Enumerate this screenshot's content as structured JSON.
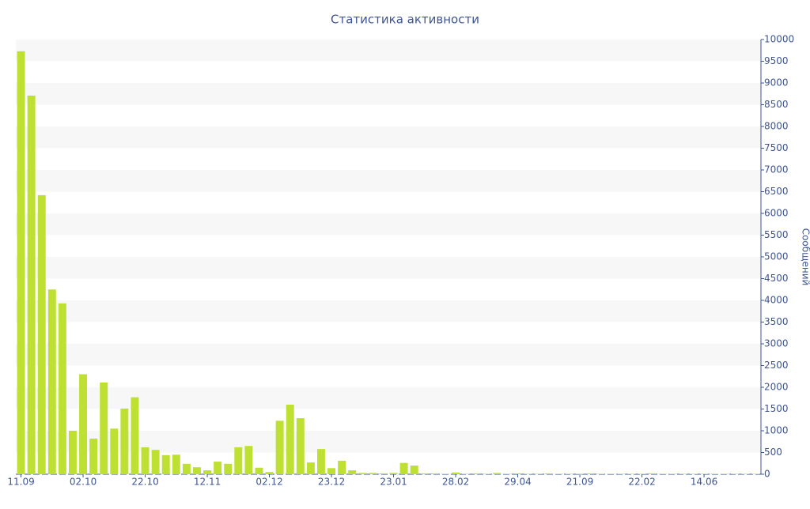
{
  "chart_data": {
    "type": "bar",
    "title": "Статистика активности",
    "y_label": "Сообщений",
    "categories": [
      "11.09",
      null,
      null,
      null,
      null,
      null,
      "02.10",
      null,
      null,
      null,
      null,
      null,
      "22.10",
      null,
      null,
      null,
      null,
      null,
      "12.11",
      null,
      null,
      null,
      null,
      null,
      "02.12",
      null,
      null,
      null,
      null,
      null,
      "23.12",
      null,
      null,
      null,
      null,
      null,
      "23.01",
      null,
      null,
      null,
      null,
      null,
      "28.02",
      null,
      null,
      null,
      null,
      null,
      "29.04",
      null,
      null,
      null,
      null,
      null,
      "21.09",
      null,
      null,
      null,
      null,
      null,
      "22.02",
      null,
      null,
      null,
      null,
      null,
      "14.06",
      null,
      null,
      null,
      null,
      null
    ],
    "values": [
      9730,
      8710,
      6420,
      4250,
      3930,
      1000,
      2300,
      820,
      2110,
      1050,
      1510,
      1770,
      620,
      560,
      440,
      450,
      240,
      160,
      90,
      290,
      240,
      620,
      650,
      150,
      50,
      1230,
      1600,
      1290,
      270,
      580,
      140,
      310,
      90,
      30,
      30,
      20,
      30,
      260,
      200,
      20,
      20,
      10,
      40,
      10,
      20,
      10,
      30,
      10,
      20,
      10,
      10,
      20,
      10,
      10,
      10,
      20,
      10,
      10,
      10,
      10,
      10,
      20,
      10,
      10,
      10,
      10,
      10,
      10,
      10,
      10,
      10,
      10
    ],
    "color": "#bde032",
    "ylim": [
      0,
      10000
    ],
    "yticks": [
      0,
      500,
      1000,
      1500,
      2000,
      2500,
      3000,
      3500,
      4000,
      4500,
      5000,
      5500,
      6000,
      6500,
      7000,
      7500,
      8000,
      8500,
      9000,
      9500,
      10000
    ],
    "grid": "bands"
  }
}
